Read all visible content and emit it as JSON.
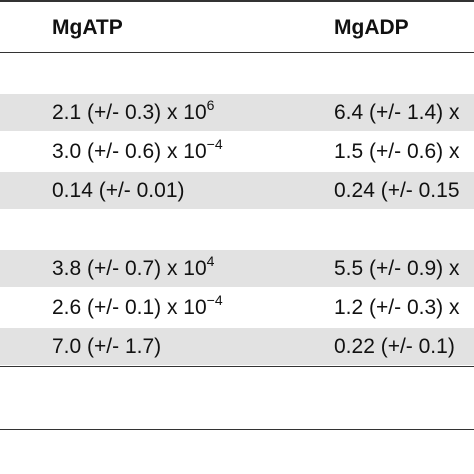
{
  "header": {
    "col1": "MgATP",
    "col2": "MgADP"
  },
  "rows": [
    {
      "kind": "section",
      "c1": "",
      "c2": ""
    },
    {
      "kind": "data",
      "c1_base": "2.1 (+/- 0.3) x 10",
      "c1_exp": "6",
      "c2_base": "6.4 (+/- 1.4) x",
      "c2_exp": ""
    },
    {
      "kind": "data",
      "c1_base": "3.0 (+/- 0.6) x 10",
      "c1_exp": "−4",
      "c2_base": "1.5 (+/- 0.6) x",
      "c2_exp": ""
    },
    {
      "kind": "data",
      "c1_base": "0.14 (+/- 0.01)",
      "c1_exp": "",
      "c2_base": "0.24 (+/- 0.15",
      "c2_exp": ""
    },
    {
      "kind": "section",
      "c1": "",
      "c2": ""
    },
    {
      "kind": "data",
      "c1_base": "3.8 (+/- 0.7) x 10",
      "c1_exp": "4",
      "c2_base": "5.5 (+/- 0.9) x",
      "c2_exp": ""
    },
    {
      "kind": "data",
      "c1_base": "2.6 (+/- 0.1) x 10",
      "c1_exp": "−4",
      "c2_base": "1.2 (+/- 0.3) x",
      "c2_exp": ""
    },
    {
      "kind": "data",
      "c1_base": "7.0 (+/- 1.7)",
      "c1_exp": "",
      "c2_base": "0.22 (+/- 0.1)",
      "c2_exp": ""
    }
  ]
}
